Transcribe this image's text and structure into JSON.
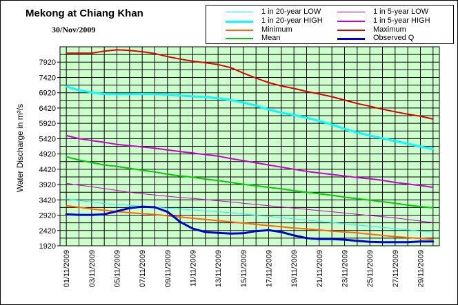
{
  "chart_data": {
    "type": "line",
    "title": "Mekong at Chiang Khan",
    "subtitle": "30/Nov/2009",
    "ylabel": "Water Discharge in m³/s",
    "xlabel": "",
    "ylim": [
      1920,
      8420
    ],
    "yticks": [
      1920,
      2420,
      2920,
      3420,
      3920,
      4420,
      4920,
      5420,
      5920,
      6420,
      6920,
      7420,
      7920
    ],
    "xtick_labels": [
      "01/11/2009",
      "03/11/2009",
      "05/11/2009",
      "07/11/2009",
      "09/11/2009",
      "11/11/2009",
      "13/11/2009",
      "15/11/2009",
      "17/11/2009",
      "19/11/2009",
      "21/11/2009",
      "23/11/2009",
      "25/11/2009",
      "27/11/2009",
      "29/11/2009"
    ],
    "x_days": [
      1,
      2,
      3,
      4,
      5,
      6,
      7,
      8,
      9,
      10,
      11,
      12,
      13,
      14,
      15,
      16,
      17,
      18,
      19,
      20,
      21,
      22,
      23,
      24,
      25,
      26,
      27,
      28,
      29,
      30
    ],
    "grid": true,
    "legend_position": "top-right",
    "plot_background": "#ccffcc",
    "series": [
      {
        "name": "1 in 20-year LOW",
        "color": "#00ffff",
        "width": 1,
        "values": [
          3450,
          3400,
          3350,
          3300,
          3270,
          3240,
          3210,
          3180,
          3150,
          3120,
          3090,
          3060,
          3030,
          3000,
          2960,
          2920,
          2880,
          2840,
          2800,
          2760,
          2720,
          2680,
          2640,
          2600,
          2560,
          2520,
          2480,
          2440,
          2400,
          2370
        ]
      },
      {
        "name": "1 in 5-year LOW",
        "color": "#cc00cc",
        "width": 1,
        "values": [
          3960,
          3900,
          3850,
          3790,
          3730,
          3670,
          3620,
          3580,
          3540,
          3500,
          3470,
          3430,
          3390,
          3350,
          3310,
          3270,
          3230,
          3190,
          3150,
          3110,
          3070,
          3030,
          2990,
          2950,
          2910,
          2870,
          2830,
          2780,
          2730,
          2680
        ]
      },
      {
        "name": "1 in 20-year HIGH",
        "color": "#00ffff",
        "width": 3,
        "values": [
          7120,
          7000,
          6930,
          6880,
          6870,
          6870,
          6880,
          6870,
          6860,
          6830,
          6800,
          6780,
          6740,
          6680,
          6600,
          6500,
          6370,
          6270,
          6190,
          6100,
          6000,
          5880,
          5740,
          5620,
          5520,
          5430,
          5340,
          5250,
          5160,
          5080
        ]
      },
      {
        "name": "1 in 5-year HIGH",
        "color": "#cc00cc",
        "width": 2,
        "values": [
          5520,
          5420,
          5360,
          5300,
          5230,
          5190,
          5150,
          5110,
          5050,
          5000,
          4950,
          4900,
          4850,
          4770,
          4700,
          4630,
          4560,
          4490,
          4420,
          4350,
          4300,
          4250,
          4200,
          4150,
          4110,
          4060,
          3990,
          3940,
          3890,
          3830
        ]
      },
      {
        "name": "Minimum",
        "color": "#ff6600",
        "width": 2,
        "values": [
          3230,
          3180,
          3120,
          3080,
          3040,
          3000,
          2970,
          2940,
          2900,
          2860,
          2820,
          2780,
          2740,
          2700,
          2660,
          2620,
          2580,
          2540,
          2500,
          2470,
          2440,
          2400,
          2370,
          2340,
          2300,
          2260,
          2220,
          2190,
          2160,
          2130
        ]
      },
      {
        "name": "Maximum",
        "color": "#dd0000",
        "width": 2,
        "values": [
          8210,
          8210,
          8210,
          8280,
          8320,
          8300,
          8260,
          8200,
          8100,
          8020,
          7950,
          7900,
          7840,
          7740,
          7560,
          7400,
          7250,
          7140,
          7060,
          6960,
          6880,
          6790,
          6680,
          6570,
          6480,
          6380,
          6300,
          6220,
          6150,
          6060
        ]
      },
      {
        "name": "Mean",
        "color": "#00cc00",
        "width": 2,
        "values": [
          4830,
          4720,
          4640,
          4560,
          4510,
          4450,
          4390,
          4330,
          4260,
          4200,
          4160,
          4100,
          4050,
          3990,
          3930,
          3880,
          3830,
          3780,
          3720,
          3670,
          3620,
          3570,
          3510,
          3460,
          3410,
          3360,
          3310,
          3250,
          3200,
          3160
        ]
      },
      {
        "name": "Observed Q",
        "color": "#0000cc",
        "width": 3,
        "values": [
          2950,
          2930,
          2930,
          2950,
          3050,
          3150,
          3200,
          3180,
          3030,
          2700,
          2480,
          2370,
          2340,
          2320,
          2330,
          2400,
          2430,
          2370,
          2260,
          2170,
          2140,
          2140,
          2120,
          2080,
          2050,
          2040,
          2040,
          2040,
          2060,
          2060
        ]
      }
    ]
  },
  "legend": [
    {
      "label": "1 in 20-year LOW",
      "color": "#00ffff",
      "width": 1
    },
    {
      "label": "1 in 5-year LOW",
      "color": "#cc00cc",
      "width": 1
    },
    {
      "label": "1 in 20-year HIGH",
      "color": "#00ffff",
      "width": 3
    },
    {
      "label": "1 in 5-year HIGH",
      "color": "#cc00cc",
      "width": 2
    },
    {
      "label": "Minimum",
      "color": "#ff6600",
      "width": 2
    },
    {
      "label": "Maximum",
      "color": "#dd0000",
      "width": 2
    },
    {
      "label": "Mean",
      "color": "#00cc00",
      "width": 2
    },
    {
      "label": "Observed Q",
      "color": "#0000cc",
      "width": 3
    }
  ]
}
